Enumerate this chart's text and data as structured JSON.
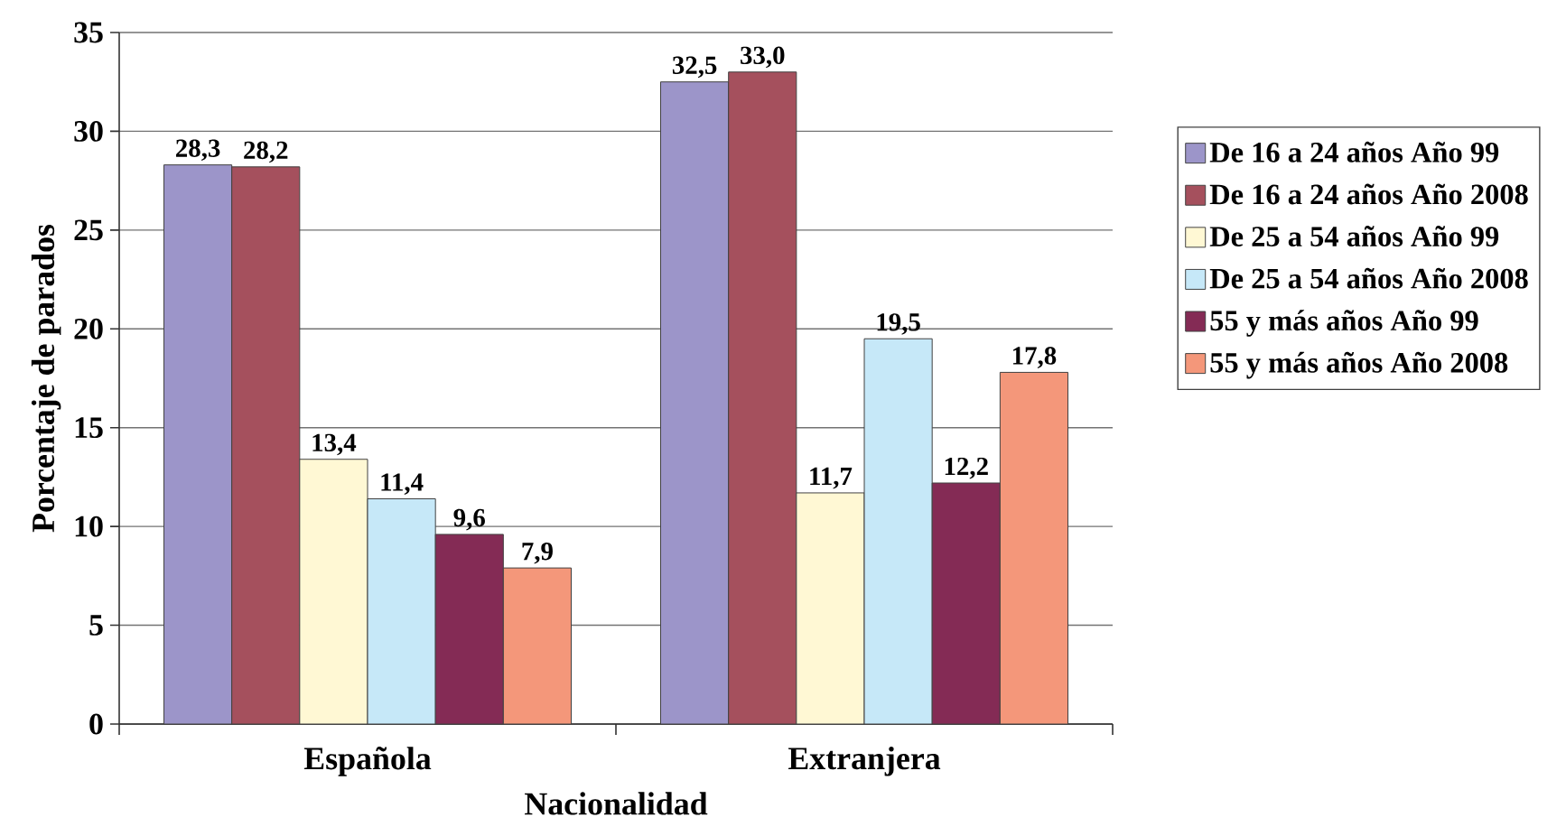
{
  "chart_data": {
    "type": "bar",
    "xlabel": "Nacionalidad",
    "ylabel": "Porcentaje de parados",
    "categories": [
      "Española",
      "Extranjera"
    ],
    "series": [
      {
        "name": "De 16 a 24 años Año 99",
        "color": "#9c95c9",
        "values": [
          28.3,
          32.5
        ],
        "value_labels": [
          "28,3",
          "32,5"
        ]
      },
      {
        "name": "De 16 a 24 años Año 2008",
        "color": "#a5505d",
        "values": [
          28.2,
          33.0
        ],
        "value_labels": [
          "28,2",
          "33,0"
        ]
      },
      {
        "name": "De 25 a 54 años Año 99",
        "color": "#fff8d4",
        "values": [
          13.4,
          11.7
        ],
        "value_labels": [
          "13,4",
          "11,7"
        ]
      },
      {
        "name": "De 25 a 54 años Año 2008",
        "color": "#c6e8f8",
        "values": [
          11.4,
          19.5
        ],
        "value_labels": [
          "11,4",
          "19,5"
        ]
      },
      {
        "name": "55 y más años Año 99",
        "color": "#842b55",
        "values": [
          9.6,
          12.2
        ],
        "value_labels": [
          "9,6",
          "12,2"
        ]
      },
      {
        "name": "55 y más años Año 2008",
        "color": "#f4977a",
        "values": [
          7.9,
          17.8
        ],
        "value_labels": [
          "7,9",
          "17,8"
        ]
      }
    ],
    "ylim": [
      0,
      35
    ],
    "yticks": [
      0,
      5,
      10,
      15,
      20,
      25,
      30,
      35
    ],
    "grid": "y",
    "legend": "right"
  }
}
